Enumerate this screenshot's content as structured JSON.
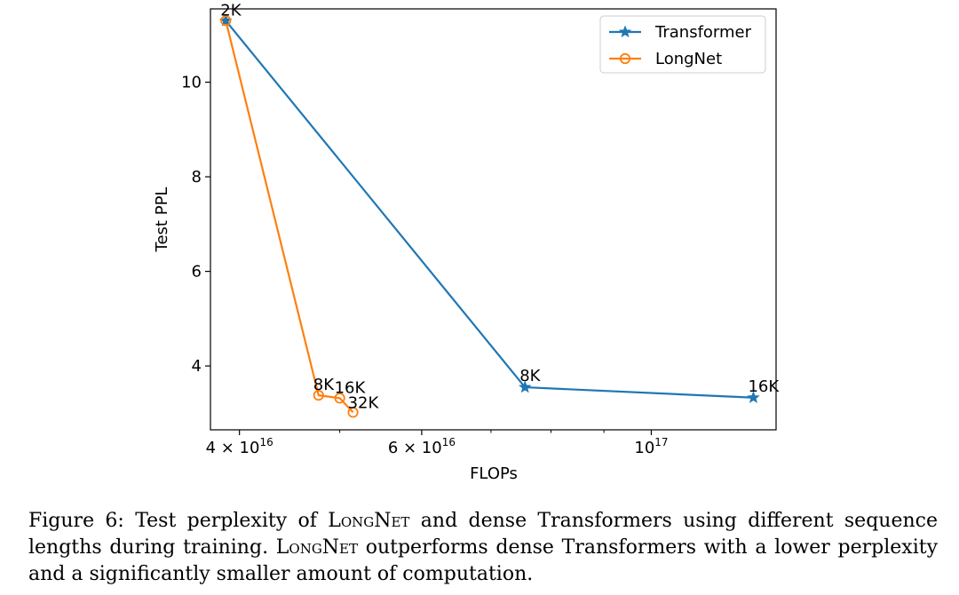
{
  "chart_data": {
    "type": "line",
    "xscale": "log",
    "xlabel": "FLOPs",
    "ylabel": "Test PPL",
    "xlim": [
      3.75e+16,
      1.32e+17
    ],
    "ylim": [
      2.65,
      11.55
    ],
    "xticks": [
      {
        "value": 4e+16,
        "base": "4 × 10",
        "exp": "16"
      },
      {
        "value": 6e+16,
        "base": "6 × 10",
        "exp": "16"
      },
      {
        "value": 1e+17,
        "base": "10",
        "exp": "17"
      }
    ],
    "xminor": [
      5e+16,
      7e+16,
      8e+16,
      9e+16
    ],
    "yticks": [
      4,
      6,
      8,
      10
    ],
    "legend_position": "upper-right",
    "series": [
      {
        "name": "Transformer",
        "color": "#1f77b4",
        "marker": "star",
        "points": [
          {
            "x": 3.88e+16,
            "y": 11.3,
            "label": "2K"
          },
          {
            "x": 7.55e+16,
            "y": 3.55,
            "label": "8K"
          },
          {
            "x": 1.255e+17,
            "y": 3.33,
            "label": "16K"
          }
        ]
      },
      {
        "name": "LongNet",
        "color": "#ff7f0e",
        "marker": "circle",
        "points": [
          {
            "x": 3.88e+16,
            "y": 11.3,
            "label": ""
          },
          {
            "x": 4.77e+16,
            "y": 3.38,
            "label": "8K"
          },
          {
            "x": 5e+16,
            "y": 3.32,
            "label": "16K"
          },
          {
            "x": 5.15e+16,
            "y": 3.02,
            "label": "32K"
          }
        ]
      }
    ]
  },
  "caption": {
    "lead": "Figure 6: Test perplexity of ",
    "name1": "LongNet",
    "mid1": " and dense Transformers using different sequence lengths during training. ",
    "name2": "LongNet",
    "tail": " outperforms dense Transformers with a lower perplexity and a significantly smaller amount of computation."
  }
}
